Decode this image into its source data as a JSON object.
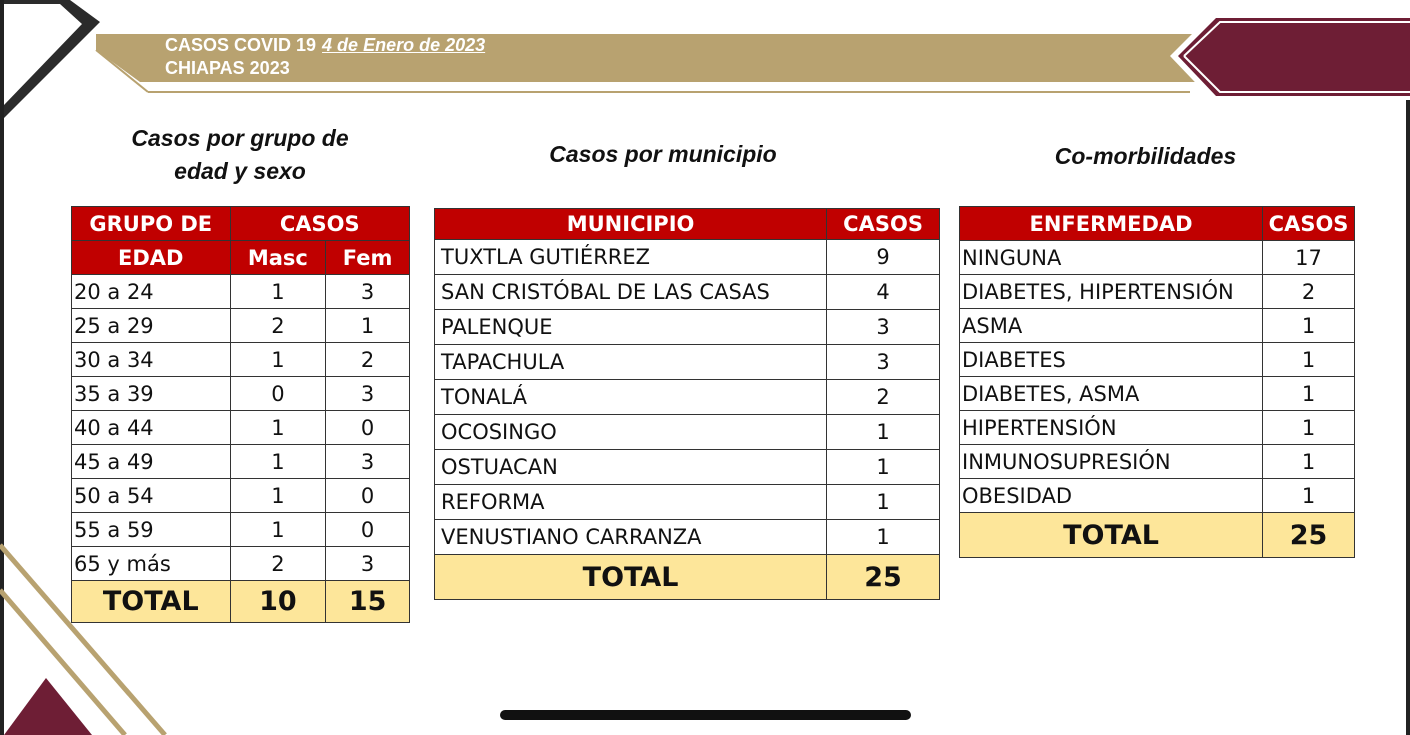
{
  "colors": {
    "accent_red": "#c00000",
    "maroon": "#6e1e35",
    "gold": "#b8a270",
    "total_fill": "#fde69a"
  },
  "header": {
    "line1": "CASOS COVID 19",
    "date": "4 de Enero de 2023",
    "line2": "CHIAPAS 2023"
  },
  "edad": {
    "title_line1": "Casos por grupo de",
    "title_line2": "edad y sexo",
    "head_group_1": "GRUPO DE",
    "head_group_2": "EDAD",
    "head_casos": "CASOS",
    "head_masc": "Masc",
    "head_fem": "Fem",
    "rows": [
      {
        "grupo": "20 a 24",
        "masc": "1",
        "fem": "3"
      },
      {
        "grupo": "25 a 29",
        "masc": "2",
        "fem": "1"
      },
      {
        "grupo": "30 a 34",
        "masc": "1",
        "fem": "2"
      },
      {
        "grupo": "35 a 39",
        "masc": "0",
        "fem": "3"
      },
      {
        "grupo": "40 a 44",
        "masc": "1",
        "fem": "0"
      },
      {
        "grupo": "45 a 49",
        "masc": "1",
        "fem": "3"
      },
      {
        "grupo": "50 a 54",
        "masc": "1",
        "fem": "0"
      },
      {
        "grupo": "55 a 59",
        "masc": "1",
        "fem": "0"
      },
      {
        "grupo": "65 y más",
        "masc": "2",
        "fem": "3"
      }
    ],
    "total_label": "TOTAL",
    "total_masc": "10",
    "total_fem": "15"
  },
  "municipio": {
    "title": "Casos por municipio",
    "head_municipio": "MUNICIPIO",
    "head_casos": "CASOS",
    "rows": [
      {
        "nombre": "TUXTLA GUTIÉRREZ",
        "casos": "9"
      },
      {
        "nombre": "SAN CRISTÓBAL DE LAS CASAS",
        "casos": "4"
      },
      {
        "nombre": "PALENQUE",
        "casos": "3"
      },
      {
        "nombre": "TAPACHULA",
        "casos": "3"
      },
      {
        "nombre": "TONALÁ",
        "casos": "2"
      },
      {
        "nombre": "OCOSINGO",
        "casos": "1"
      },
      {
        "nombre": "OSTUACAN",
        "casos": "1"
      },
      {
        "nombre": "REFORMA",
        "casos": "1"
      },
      {
        "nombre": "VENUSTIANO CARRANZA",
        "casos": "1"
      }
    ],
    "total_label": "TOTAL",
    "total_casos": "25"
  },
  "comorbilidades": {
    "title": "Co-morbilidades",
    "head_enfermedad": "ENFERMEDAD",
    "head_casos": "CASOS",
    "rows": [
      {
        "nombre": "NINGUNA",
        "casos": "17"
      },
      {
        "nombre": "DIABETES, HIPERTENSIÓN",
        "casos": "2"
      },
      {
        "nombre": "ASMA",
        "casos": "1"
      },
      {
        "nombre": "DIABETES",
        "casos": "1"
      },
      {
        "nombre": "DIABETES, ASMA",
        "casos": "1"
      },
      {
        "nombre": "HIPERTENSIÓN",
        "casos": "1"
      },
      {
        "nombre": "INMUNOSUPRESIÓN",
        "casos": "1"
      },
      {
        "nombre": "OBESIDAD",
        "casos": "1"
      }
    ],
    "total_label": "TOTAL",
    "total_casos": "25"
  }
}
